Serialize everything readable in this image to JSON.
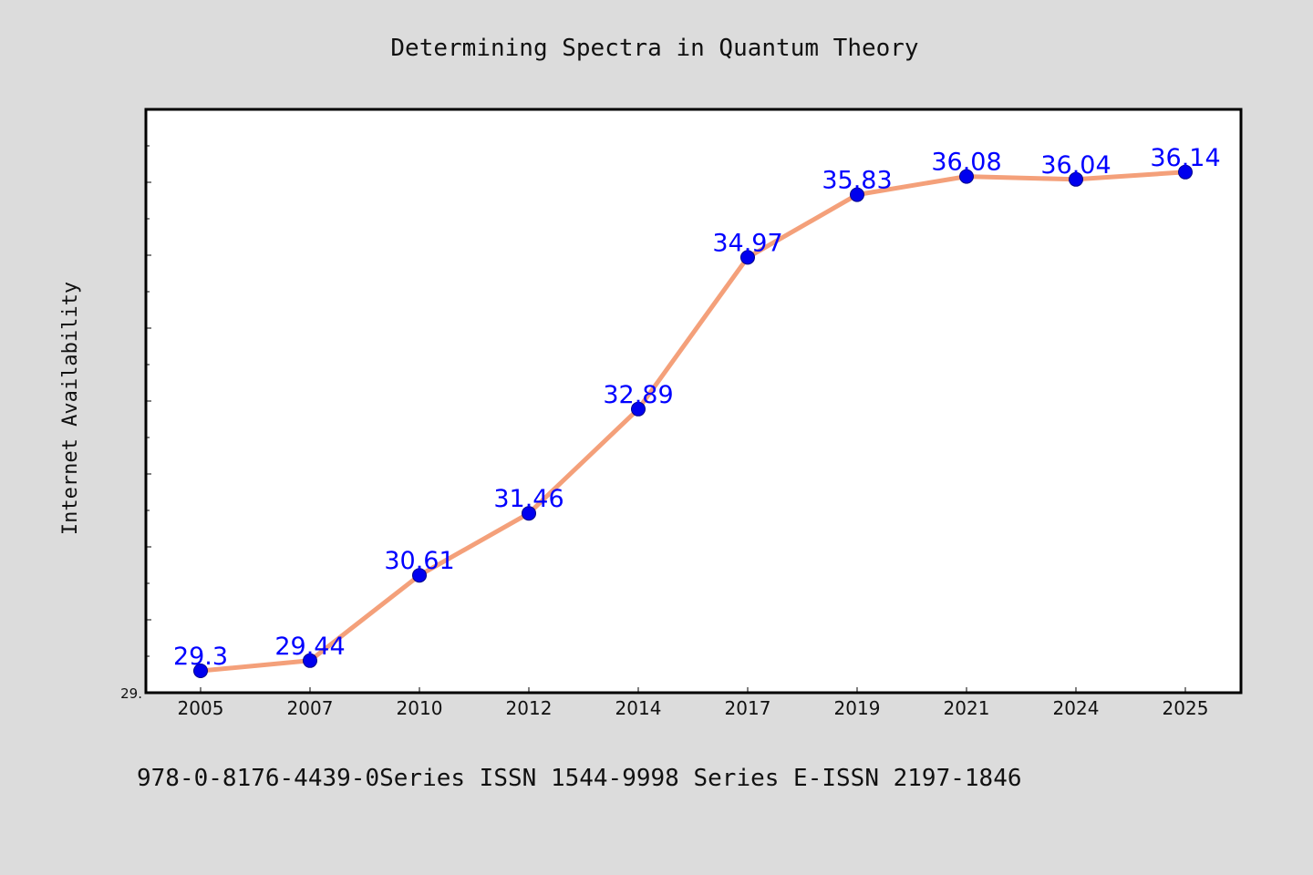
{
  "chart_data": {
    "type": "line",
    "title": "Determining Spectra in Quantum Theory",
    "xlabel": "",
    "ylabel": "Internet Availability",
    "categories": [
      "2005",
      "2007",
      "2010",
      "2012",
      "2014",
      "2017",
      "2019",
      "2021",
      "2024",
      "2025"
    ],
    "series": [
      {
        "values": [
          29.3,
          29.44,
          30.61,
          31.46,
          32.89,
          34.97,
          35.83,
          36.08,
          36.04,
          36.14
        ]
      }
    ],
    "data_labels": [
      "29.3",
      "29.44",
      "30.61",
      "31.46",
      "32.89",
      "34.97",
      "35.83",
      "36.08",
      "36.04",
      "36.14"
    ],
    "ylim": [
      29.0,
      37.0
    ],
    "y_tick_labels_visible": [
      "29."
    ],
    "grid": false,
    "legend": "none",
    "colors": {
      "background": "#dcdcdc",
      "plot_area": "#ffffff",
      "line": "#f4a07a",
      "marker": "#0000ee",
      "data_label": "#0000ff",
      "text": "#111111"
    }
  },
  "footer": {
    "text": "978-0-8176-4439-0Series ISSN 1544-9998 Series E-ISSN 2197-1846"
  }
}
